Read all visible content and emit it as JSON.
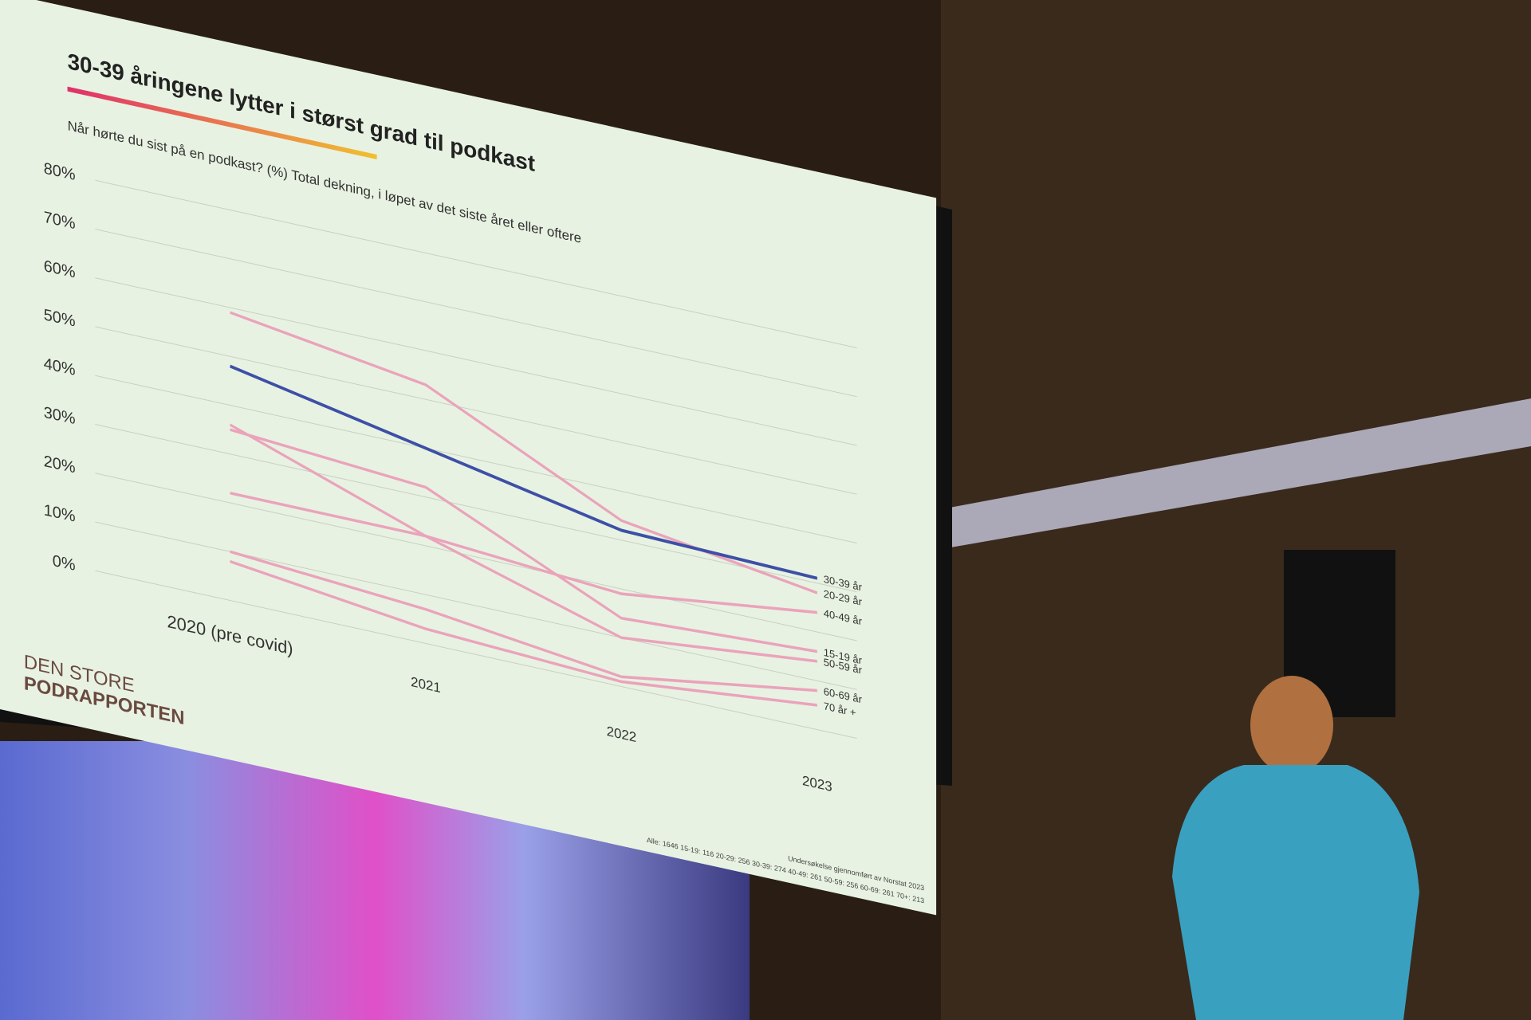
{
  "chart_data": {
    "type": "line",
    "title": "30-39 åringene lytter i størst grad til podkast",
    "subtitle": "Når hørte du sist på en podkast? (%) Total dekning, i løpet av det siste året eller oftere",
    "categories": [
      "2020 (pre covid)",
      "2021",
      "2022",
      "2023"
    ],
    "series": [
      {
        "name": "30-39 år",
        "color": "#3d4fa6",
        "values": [
          48,
          40,
          32,
          31
        ]
      },
      {
        "name": "20-29 år",
        "color": "#eaa3bb",
        "values": [
          59,
          53,
          34,
          28
        ]
      },
      {
        "name": "40-49 år",
        "color": "#eaa3bb",
        "values": [
          22,
          22,
          19,
          24
        ]
      },
      {
        "name": "15-19 år",
        "color": "#eaa3bb",
        "values": [
          35,
          32,
          14,
          16
        ]
      },
      {
        "name": "50-59 år",
        "color": "#eaa3bb",
        "values": [
          36,
          22,
          10,
          14
        ]
      },
      {
        "name": "60-69 år",
        "color": "#eaa3bb",
        "values": [
          10,
          7,
          2,
          8
        ]
      },
      {
        "name": "70 år +",
        "color": "#eaa3bb",
        "values": [
          8,
          3,
          1,
          5
        ]
      }
    ],
    "ylim": [
      0,
      80
    ],
    "yticks": [
      {
        "value": 0,
        "label": "0%"
      },
      {
        "value": 10,
        "label": "10%"
      },
      {
        "value": 20,
        "label": "20%"
      },
      {
        "value": 30,
        "label": "30%"
      },
      {
        "value": 40,
        "label": "40%"
      },
      {
        "value": 50,
        "label": "50%"
      },
      {
        "value": 60,
        "label": "60%"
      },
      {
        "value": 70,
        "label": "70%"
      },
      {
        "value": 80,
        "label": "80%"
      }
    ],
    "grid": true
  },
  "slide": {
    "logo_line1": "DEN STORE",
    "logo_line2": "PODRAPPORTEN",
    "source": "Undersøkelse gjennomført av Norstat 2023",
    "sample": "Alle: 1646 15-19: 116 20-29: 256 30-39: 274 40-49: 261 50-59: 256 60-69: 261 70+: 213"
  }
}
